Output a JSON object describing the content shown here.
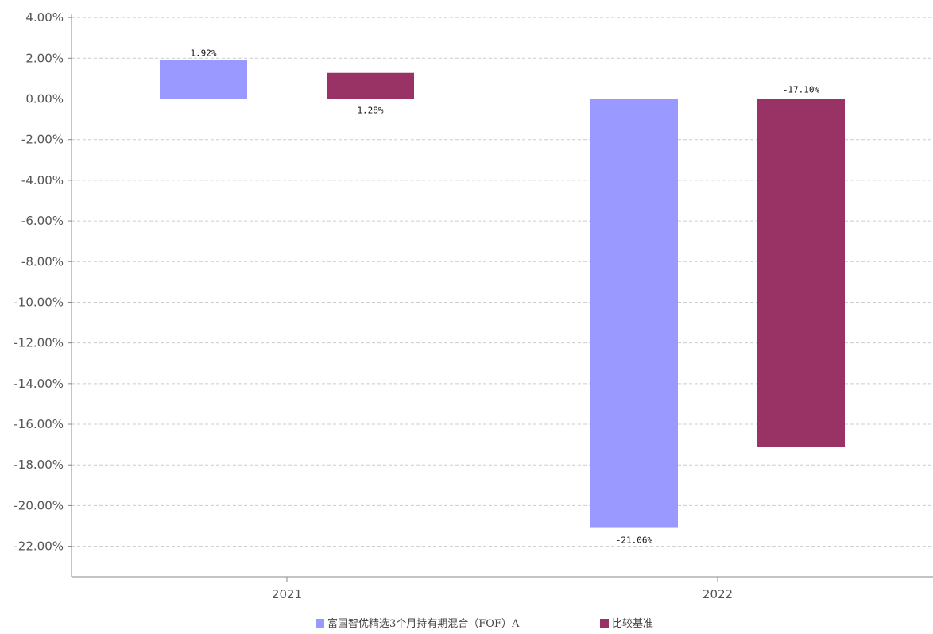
{
  "chart_data": {
    "type": "bar",
    "categories": [
      "2021",
      "2022"
    ],
    "series": [
      {
        "name": "富国智优精选3个月持有期混合（FOF）A",
        "color": "#9999ff",
        "values": [
          1.92,
          -21.06
        ],
        "labels": [
          "1.92%",
          "-21.06%"
        ]
      },
      {
        "name": "比较基准",
        "color": "#993366",
        "values": [
          1.28,
          -17.1
        ],
        "labels": [
          "1.28%",
          "-17.10%"
        ]
      }
    ],
    "ylim": [
      -23.5,
      4.2
    ],
    "yticks": [
      4,
      2,
      0,
      -2,
      -4,
      -6,
      -8,
      -10,
      -12,
      -14,
      -16,
      -18,
      -20,
      -22
    ],
    "ytick_labels": [
      "4.00%",
      "2.00%",
      "0.00%",
      "-2.00%",
      "-4.00%",
      "-6.00%",
      "-8.00%",
      "-10.00%",
      "-12.00%",
      "-14.00%",
      "-16.00%",
      "-18.00%",
      "-20.00%",
      "-22.00%"
    ],
    "grid": true,
    "legend": "bottom-center",
    "title": "",
    "xlabel": "",
    "ylabel": ""
  }
}
